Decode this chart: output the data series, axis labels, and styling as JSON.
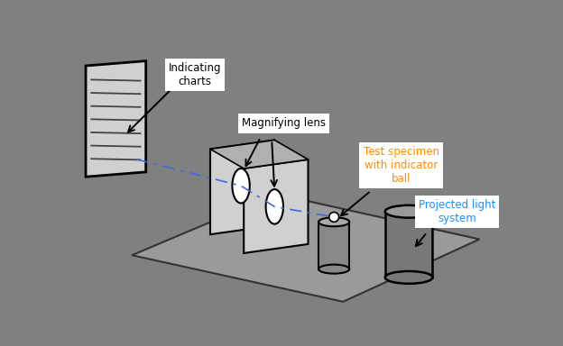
{
  "bg_color": "#808080",
  "labels": {
    "indicating_charts": "Indicating\ncharts",
    "magnifying_lens": "Magnifying lens",
    "test_specimen": "Test specimen\nwith indicator\nball",
    "projected_light": "Projected light\nsystem"
  },
  "label_colors": {
    "indicating_charts": "#000000",
    "magnifying_lens": "#000000",
    "test_specimen": "#ff8c00",
    "projected_light": "#1e90ff"
  },
  "dashed_line_color": "#4169e1",
  "arrow_color": "#000000",
  "floor_color": "#9a9a9a",
  "floor_edge_color": "#333333",
  "panel_light": "#d0d0d0",
  "panel_dark": "#b0b0b0",
  "doc_color": "#d0d0d0",
  "cyl_small_body": "#888888",
  "cyl_small_top": "#aaaaaa",
  "cyl_large_body": "#787878",
  "cyl_large_top": "#999999",
  "line_color": "#444444",
  "ball_color": "#ffffff"
}
